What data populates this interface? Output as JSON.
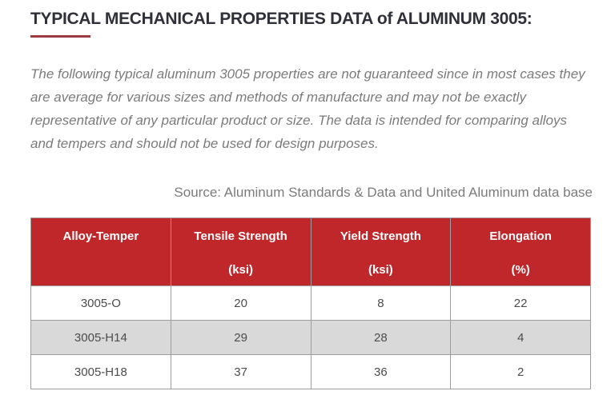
{
  "page": {
    "title": "TYPICAL MECHANICAL PROPERTIES DATA of ALUMINUM 3005:",
    "disclaimer": "The following typical aluminum 3005 properties are not guaranteed since in most cases they are average for various sizes and methods of manufacture and may not be exactly representative of any particular product or size. The data is intended for comparing alloys and tempers and should not be used for design purposes.",
    "source": "Source: Aluminum Standards & Data and United Aluminum data base"
  },
  "colors": {
    "header_bg": "#c0272b",
    "title_underline": "#9e3a3f",
    "alt_row_bg": "#d9d9d9",
    "title_text": "#2f3039",
    "body_text": "#7b7b7b",
    "cell_text": "#4c4c4c",
    "table_border": "#9d9d9d"
  },
  "table": {
    "headers": [
      {
        "line1": "Alloy-Temper",
        "line2": ""
      },
      {
        "line1": "Tensile Strength",
        "line2": "(ksi)"
      },
      {
        "line1": "Yield Strength",
        "line2": "(ksi)"
      },
      {
        "line1": "Elongation",
        "line2": "(%)"
      }
    ],
    "rows": [
      [
        "3005-O",
        "20",
        "8",
        "22"
      ],
      [
        "3005-H14",
        "29",
        "28",
        "4"
      ],
      [
        "3005-H18",
        "37",
        "36",
        "2"
      ]
    ]
  }
}
